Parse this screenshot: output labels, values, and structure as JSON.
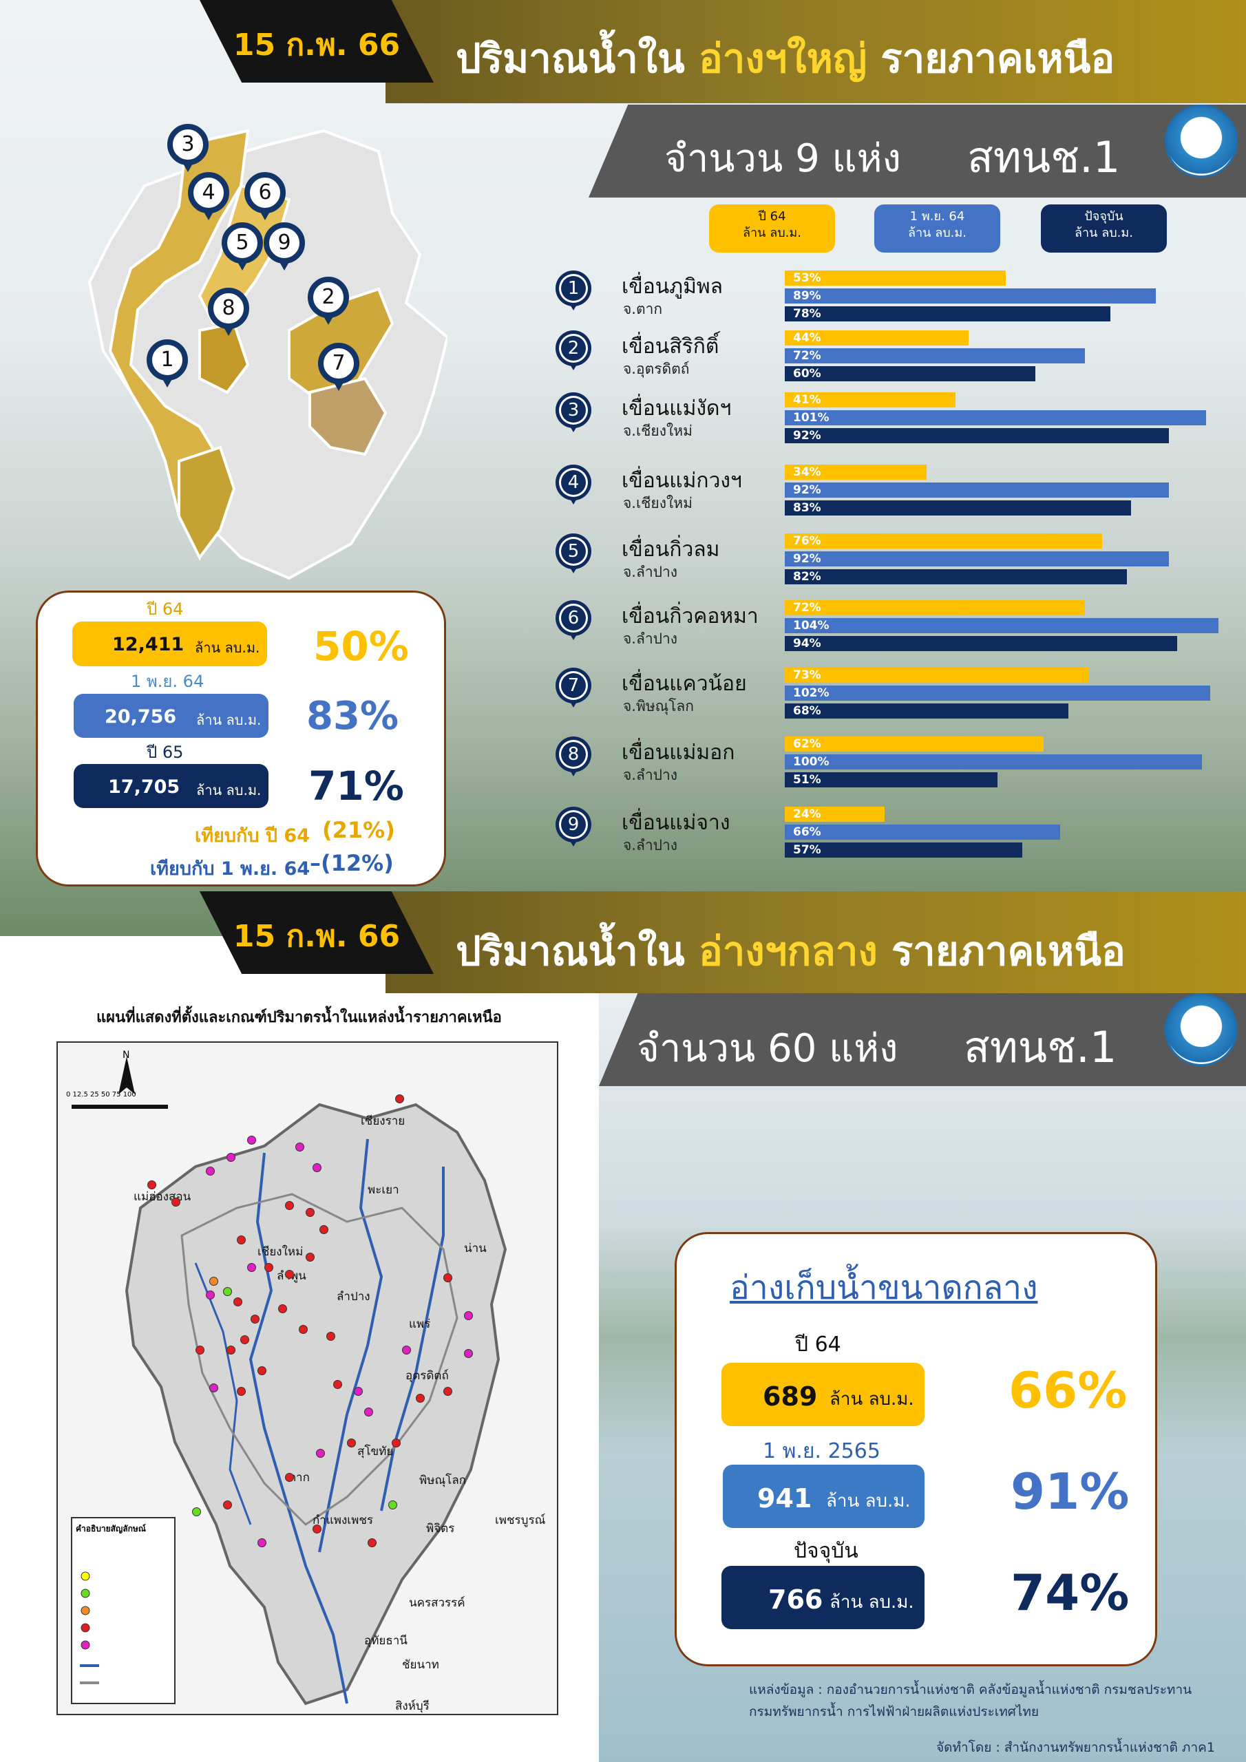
{
  "top": {
    "date": "15 ก.พ. 66",
    "title_pre": "ปริมาณน้ำใน ",
    "title_hl": "อ่างฯใหญ่",
    "title_post": " รายภาคเหนือ",
    "count_text": "จำนวน 9 แห่ง",
    "org_text": "สทนช.1",
    "legend": [
      {
        "line1": "ปี 64",
        "line2": "ล้าน ลบ.ม.",
        "color": "#ffc000"
      },
      {
        "line1": "1 พ.ย. 64",
        "line2": "ล้าน ลบ.ม.",
        "color": "#4472c4"
      },
      {
        "line1": "ปัจจุบัน",
        "line2": "ล้าน ลบ.ม.",
        "color": "#0f2a5c"
      }
    ],
    "map_pins": [
      "3",
      "4",
      "6",
      "5",
      "9",
      "8",
      "2",
      "1",
      "7"
    ],
    "summary": {
      "label1": "ปี 64",
      "value1": "12,411",
      "unit": "ล้าน ลบ.ม.",
      "pct1": "50%",
      "label2": "1 พ.ย. 64",
      "value2": "20,756",
      "pct2": "83%",
      "label3": "ปี 65",
      "value3": "17,705",
      "pct3": "71%",
      "cmp1_label": "เทียบกับ ปี 64",
      "cmp1_value": "(21%)",
      "cmp2_label": "เทียบกับ 1 พ.ย. 64",
      "cmp2_value": "–(12%)"
    }
  },
  "chart_data": {
    "type": "bar",
    "orientation": "horizontal",
    "unit": "%",
    "xlim": [
      0,
      105
    ],
    "categories": [
      "เขื่อนภูมิพล",
      "เขื่อนสิริกิติ์",
      "เขื่อนแม่งัดฯ",
      "เขื่อนแม่กวงฯ",
      "เขื่อนกิ่วลม",
      "เขื่อนกิ่วคอหมา",
      "เขื่อนแควน้อย",
      "เขื่อนแม่มอก",
      "เขื่อนแม่จาง"
    ],
    "provinces": [
      "จ.ตาก",
      "จ.อุตรดิตถ์",
      "จ.เชียงใหม่",
      "จ.เชียงใหม่",
      "จ.ลำปาง",
      "จ.ลำปาง",
      "จ.พิษณุโลก",
      "จ.ลำปาง",
      "จ.ลำปาง"
    ],
    "numbers": [
      "1",
      "2",
      "3",
      "4",
      "5",
      "6",
      "7",
      "8",
      "9"
    ],
    "series": [
      {
        "name": "ปี 64",
        "color": "#ffc000",
        "values": [
          53,
          44,
          41,
          34,
          76,
          72,
          73,
          62,
          24
        ]
      },
      {
        "name": "1 พ.ย. 64",
        "color": "#4472c4",
        "values": [
          89,
          72,
          101,
          92,
          92,
          104,
          102,
          100,
          66
        ]
      },
      {
        "name": "ปัจจุบัน",
        "color": "#0f2a5c",
        "values": [
          78,
          60,
          92,
          83,
          82,
          94,
          68,
          51,
          57
        ]
      }
    ]
  },
  "bottom": {
    "date": "15 ก.พ. 66",
    "title_pre": "ปริมาณน้ำใน ",
    "title_hl": "อ่างฯกลาง",
    "title_post": " รายภาคเหนือ",
    "count_text": "จำนวน 60 แห่ง",
    "org_text": "สทนช.1",
    "map_title": "แผนที่แสดงที่ตั้งและเกณฑ์ปริมาตรน้ำในแหล่งน้ำรายภาคเหนือ",
    "map_cities": [
      "เชียงราย",
      "แม่ฮ่องสอน",
      "พะเยา",
      "น่าน",
      "เชียงใหม่",
      "ลำพูน",
      "ลำปาง",
      "แพร่",
      "อุตรดิตถ์",
      "สุโขทัย",
      "ตาก",
      "พิษณุโลก",
      "กำแพงเพชร",
      "พิจิตร",
      "เพชรบูรณ์",
      "นครสวรรค์",
      "อุทัยธานี",
      "ชัยนาท",
      "สิงห์บุรี"
    ],
    "map_north": "N",
    "map_scale": "0 12.5 25   50   75   100",
    "legend_title": "คำอธิบายสัญลักษณ์",
    "box_title": "อ่างเก็บน้ำขนาดกลาง",
    "label1": "ปี 64",
    "value1": "689",
    "unit": "ล้าน ลบ.ม.",
    "pct1": "66%",
    "label2": "1 พ.ย. 2565",
    "value2": "941",
    "pct2": "91%",
    "label3": "ปัจจุบัน",
    "value3": "766",
    "pct3": "74%",
    "source_line1": "แหล่งข้อมูล : กองอำนวยการน้ำแห่งชาติ คลังข้อมูลน้ำแห่งชาติ  กรมชลประทาน",
    "source_line2": "กรมทรัพยากรน้ำ การไฟฟ้าฝ่ายผลิตแห่งประเทศไทย",
    "credit": "จัดทำโดย : สำนักงานทรัพยากรน้ำแห่งชาติ ภาค1"
  },
  "colors": {
    "gold": "#ffc000",
    "blue": "#4472c4",
    "navy": "#0f2a5c",
    "brown_border": "#7a3b12"
  }
}
